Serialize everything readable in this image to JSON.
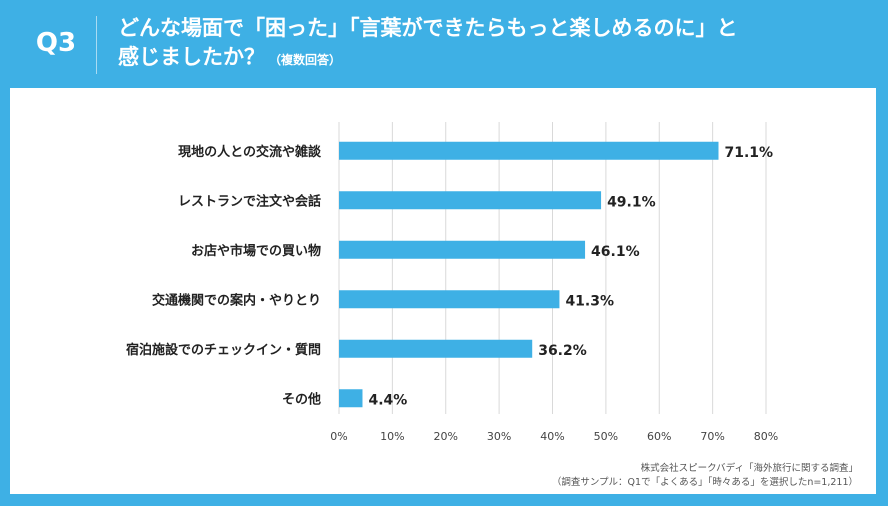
{
  "header": {
    "q_number": "Q3",
    "title_line1": "どんな場面で「困った」「言葉ができたらもっと楽しめるのに」と",
    "title_line2": "感じましたか？",
    "title_sub": "（複数回答）"
  },
  "chart_data": {
    "type": "bar",
    "orientation": "horizontal",
    "categories": [
      "現地の人との交流や雑談",
      "レストランで注文や会話",
      "お店や市場での買い物",
      "交通機関での案内・やりとり",
      "宿泊施設でのチェックイン・質問",
      "その他"
    ],
    "values": [
      71.1,
      49.1,
      46.1,
      41.3,
      36.2,
      4.4
    ],
    "value_labels": [
      "71.1%",
      "49.1%",
      "46.1%",
      "41.3%",
      "36.2%",
      "4.4%"
    ],
    "xlim": [
      0,
      80
    ],
    "ticks": [
      "0%",
      "10%",
      "20%",
      "30%",
      "40%",
      "50%",
      "60%",
      "70%",
      "80%"
    ],
    "bar_color": "#3eb0e5",
    "grid": true
  },
  "footer": {
    "source": "株式会社スピークバディ「海外旅行に関する調査」",
    "sample": "（調査サンプル：Q1で「よくある」「時々ある」を選択したn=1,211）"
  }
}
